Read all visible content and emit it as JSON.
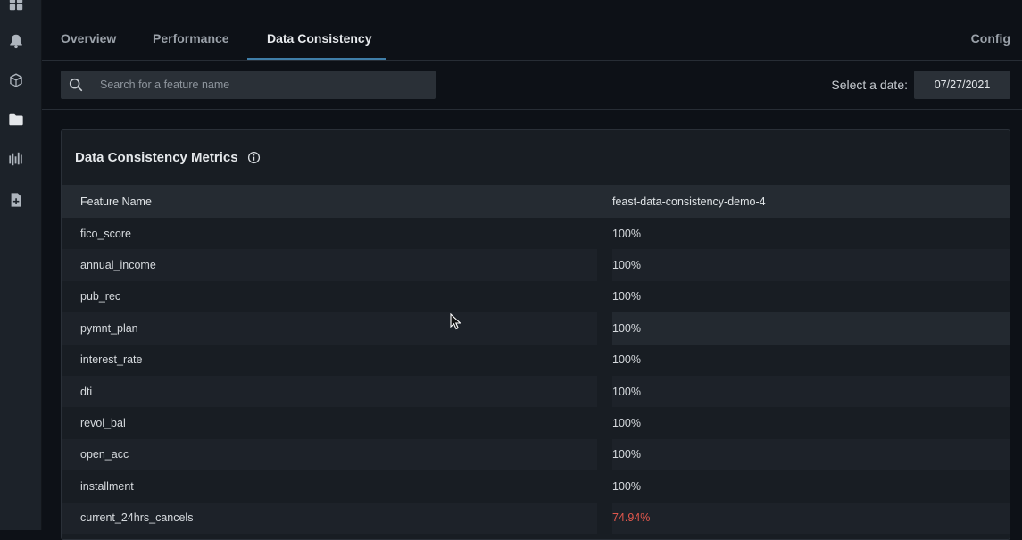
{
  "sidebar": {
    "items": [
      {
        "icon": "dashboard-icon"
      },
      {
        "icon": "bell-icon"
      },
      {
        "icon": "cube-icon"
      },
      {
        "icon": "folder-icon",
        "active": true
      },
      {
        "icon": "chart-bars-icon"
      },
      {
        "icon": "add-document-icon"
      }
    ]
  },
  "tabs": [
    {
      "label": "Overview"
    },
    {
      "label": "Performance"
    },
    {
      "label": "Data Consistency",
      "active": true
    }
  ],
  "config_label": "Config",
  "search": {
    "placeholder": "Search for a feature name",
    "value": ""
  },
  "date": {
    "label": "Select a date:",
    "value": "07/27/2021"
  },
  "card": {
    "title": "Data Consistency Metrics",
    "table": {
      "headers": [
        "Feature Name",
        "feast-data-consistency-demo-4"
      ],
      "rows": [
        {
          "name": "fico_score",
          "value": "100%"
        },
        {
          "name": "annual_income",
          "value": "100%"
        },
        {
          "name": "pub_rec",
          "value": "100%"
        },
        {
          "name": "pymnt_plan",
          "value": "100%"
        },
        {
          "name": "interest_rate",
          "value": "100%"
        },
        {
          "name": "dti",
          "value": "100%"
        },
        {
          "name": "revol_bal",
          "value": "100%"
        },
        {
          "name": "open_acc",
          "value": "100%"
        },
        {
          "name": "installment",
          "value": "100%"
        },
        {
          "name": "current_24hrs_cancels",
          "value": "74.94%",
          "status": "bad"
        }
      ]
    }
  },
  "colors": {
    "accent": "#3f7ea8",
    "bad": "#e1574c",
    "background": "#0d1117",
    "card": "#181d23"
  }
}
